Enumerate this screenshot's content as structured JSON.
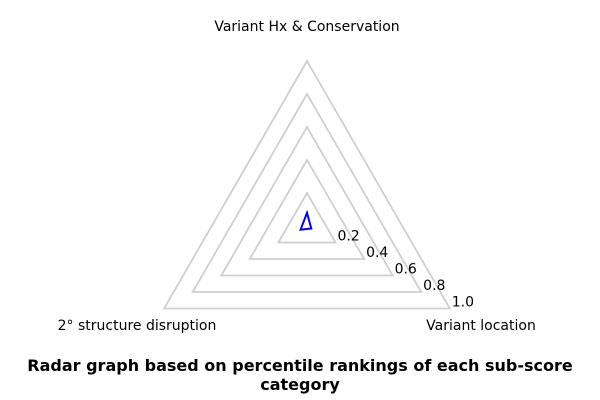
{
  "caption": {
    "text": "Radar graph based on percentile rankings of each sub-score category"
  },
  "chart_data": {
    "type": "radar",
    "title": "",
    "categories": [
      "Variant Hx & Conservation",
      "2° structure disruption",
      "Variant location"
    ],
    "series": [
      {
        "name": "percentile rankings",
        "values": [
          0.08,
          0.045,
          0.03
        ],
        "color": "#0000ff",
        "fill": "none"
      }
    ],
    "axis_range": [
      0,
      1.0
    ],
    "grid": "on",
    "grid_levels": [
      0.2,
      0.4,
      0.6,
      0.8,
      1.0
    ],
    "tick_labels": [
      "0.2",
      "0.4",
      "0.6",
      "0.8",
      "1.0"
    ],
    "tick_axis": "lower-right",
    "legend_position": "none",
    "grid_color": "#cfcfcf",
    "label_color": "#000000",
    "background_color": "#ffffff"
  }
}
